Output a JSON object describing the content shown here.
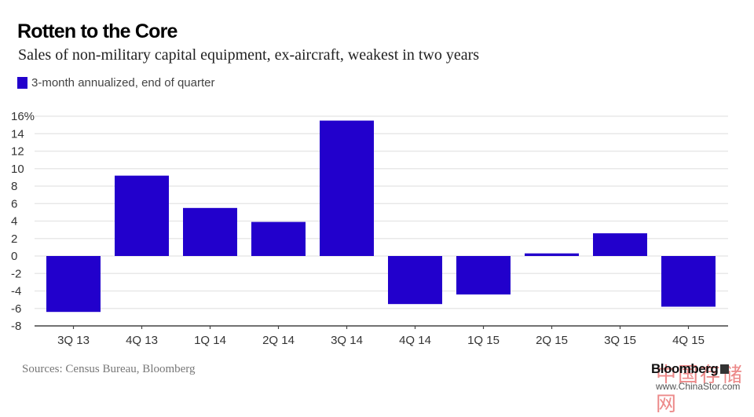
{
  "header": {
    "title": "Rotten to the Core",
    "subtitle": "Sales of non-military capital equipment, ex-aircraft, weakest in two years"
  },
  "footer": {
    "source": "Sources: Census Bureau, Bloomberg",
    "brand": "Bloomberg",
    "watermark_cn": "中国存储网",
    "watermark_url": "www.ChinaStor.com"
  },
  "colors": {
    "bar": "#2200cc",
    "grid": "#e8e8e8",
    "axis": "#444444",
    "tick_label": "#333333"
  },
  "chart_data": {
    "type": "bar",
    "title": "Rotten to the Core",
    "subtitle": "Sales of non-military capital equipment, ex-aircraft, weakest in two years",
    "xlabel": "",
    "ylabel": "",
    "legend": {
      "position": "top-left",
      "entries": [
        "3-month annualized, end of quarter"
      ]
    },
    "categories": [
      "3Q 13",
      "4Q 13",
      "1Q 14",
      "2Q 14",
      "3Q 14",
      "4Q 14",
      "1Q 15",
      "2Q 15",
      "3Q 15",
      "4Q 15"
    ],
    "series": [
      {
        "name": "3-month annualized, end of quarter",
        "values": [
          -6.4,
          9.2,
          5.5,
          3.9,
          15.5,
          -5.5,
          -4.4,
          0.3,
          2.6,
          -5.8
        ]
      }
    ],
    "ylim": [
      -8,
      16
    ],
    "yticks": [
      16,
      14,
      12,
      10,
      8,
      6,
      4,
      2,
      0,
      -2,
      -4,
      -6,
      -8
    ],
    "ytick_labels": [
      "16%",
      "14",
      "12",
      "10",
      "8",
      "6",
      "4",
      "2",
      "0",
      "-2",
      "-4",
      "-6",
      "-8"
    ],
    "grid": true
  }
}
